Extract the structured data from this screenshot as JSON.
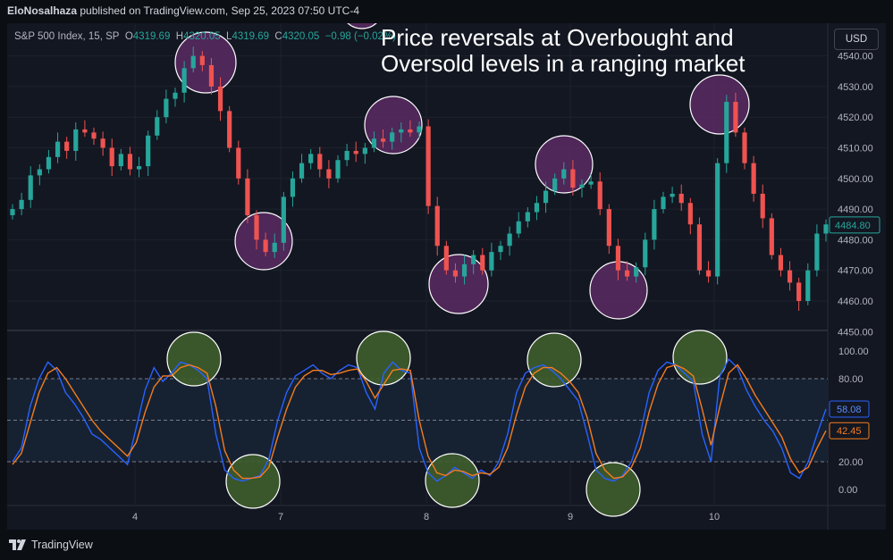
{
  "header": {
    "author": "EloNosalhaza",
    "published_text": " published on TradingView.com, Sep 25, 2023 07:50 UTC-4"
  },
  "symbol": {
    "name": "S&P 500 Index, 15, SP",
    "open_label": "O",
    "open": "4319.69",
    "high_label": "H",
    "high": "4320.05",
    "low_label": "L",
    "low": "4319.69",
    "close_label": "C",
    "close": "4320.05",
    "change": "−0.98 (−0.02%)"
  },
  "currency_button": "USD",
  "annotation": "Price reversals at Overbought and Oversold levels in a ranging market",
  "footer": {
    "brand": "TradingView"
  },
  "colors": {
    "up": "#26a69a",
    "down": "#ef5350",
    "k_line": "#2962ff",
    "d_line": "#f57c1f",
    "overbought_circle": "#5b2a63",
    "oversold_circle": "#3f5d2c",
    "band": "#162232"
  },
  "chart_data": [
    {
      "type": "candlestick",
      "title": "",
      "ylim": [
        4450,
        4545
      ],
      "y_ticks": [
        4460,
        4470,
        4480,
        4490,
        4500,
        4510,
        4520,
        4530,
        4540,
        4450
      ],
      "x_ticks": [
        "4",
        "7",
        "8",
        "9",
        "10"
      ],
      "current_price": "4484.80",
      "highlight_markers": [
        {
          "kind": "overbought",
          "near_price": 4535,
          "session": "4"
        },
        {
          "kind": "oversold",
          "near_price": 4480,
          "session": "4/7"
        },
        {
          "kind": "overbought",
          "near_price": 4547,
          "session": "7"
        },
        {
          "kind": "overbought",
          "near_price": 4516,
          "session": "7"
        },
        {
          "kind": "oversold",
          "near_price": 4466,
          "session": "8"
        },
        {
          "kind": "overbought",
          "near_price": 4504,
          "session": "8/9"
        },
        {
          "kind": "oversold",
          "near_price": 4463,
          "session": "9"
        },
        {
          "kind": "overbought",
          "near_price": 4524,
          "session": "9/10"
        }
      ],
      "close_path": [
        4490,
        4493,
        4501,
        4503,
        4507,
        4512,
        4509,
        4516,
        4515,
        4513,
        4510,
        4504,
        4508,
        4503,
        4504,
        4514,
        4520,
        4526,
        4528,
        4536,
        4540,
        4537,
        4530,
        4522,
        4510,
        4500,
        4488,
        4480,
        4476,
        4479,
        4494,
        4500,
        4505,
        4508,
        4503,
        4500,
        4506,
        4509,
        4508,
        4510,
        4513,
        4512,
        4515,
        4516,
        4515,
        4517,
        4491,
        4478,
        4470,
        4468,
        4472,
        4475,
        4470,
        4476,
        4478,
        4482,
        4486,
        4489,
        4492,
        4496,
        4500,
        4503,
        4497,
        4498,
        4499,
        4490,
        4478,
        4470,
        4468,
        4471,
        4480,
        4490,
        4494,
        4495,
        4492,
        4485,
        4470,
        4468,
        4505,
        4525,
        4515,
        4505,
        4495,
        4487,
        4475,
        4470,
        4466,
        4460,
        4470,
        4482,
        4485
      ]
    },
    {
      "type": "line",
      "title": "",
      "ylim": [
        0,
        100
      ],
      "y_ticks": [
        100,
        80,
        20,
        0
      ],
      "bands": {
        "upper": 80,
        "lower": 20
      },
      "series": [
        {
          "name": "",
          "last": "58.08",
          "values": [
            20,
            30,
            60,
            80,
            92,
            86,
            70,
            62,
            52,
            40,
            36,
            30,
            24,
            18,
            45,
            72,
            88,
            78,
            84,
            92,
            90,
            86,
            80,
            40,
            14,
            8,
            6,
            8,
            10,
            22,
            50,
            70,
            82,
            86,
            90,
            84,
            80,
            86,
            90,
            88,
            70,
            58,
            84,
            92,
            86,
            84,
            30,
            12,
            6,
            10,
            16,
            12,
            8,
            14,
            10,
            20,
            40,
            70,
            84,
            88,
            90,
            86,
            80,
            72,
            64,
            40,
            14,
            8,
            6,
            10,
            20,
            40,
            70,
            86,
            92,
            90,
            84,
            78,
            40,
            20,
            82,
            94,
            88,
            72,
            60,
            50,
            42,
            30,
            12,
            8,
            20,
            40,
            58.08
          ]
        },
        {
          "name": "",
          "last": "42.45",
          "values": [
            18,
            26,
            48,
            70,
            84,
            88,
            80,
            70,
            60,
            50,
            42,
            36,
            30,
            24,
            34,
            56,
            74,
            82,
            82,
            88,
            90,
            88,
            84,
            60,
            28,
            14,
            8,
            8,
            9,
            16,
            38,
            58,
            74,
            82,
            86,
            86,
            83,
            84,
            86,
            87,
            78,
            66,
            76,
            86,
            87,
            86,
            50,
            24,
            12,
            10,
            14,
            13,
            10,
            12,
            11,
            16,
            30,
            54,
            74,
            84,
            88,
            88,
            84,
            78,
            70,
            52,
            26,
            14,
            8,
            9,
            16,
            30,
            56,
            76,
            88,
            90,
            87,
            82,
            58,
            32,
            60,
            84,
            90,
            80,
            68,
            58,
            48,
            38,
            22,
            12,
            16,
            30,
            42.45
          ]
        }
      ]
    }
  ]
}
